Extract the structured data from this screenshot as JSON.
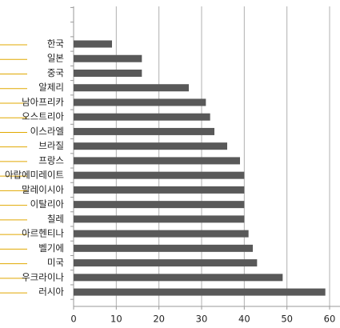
{
  "chart_data": {
    "type": "bar",
    "orientation": "horizontal",
    "categories": [
      "한국",
      "일본",
      "중국",
      "알제리",
      "남아프리카",
      "오스트리아",
      "이스라엘",
      "브라질",
      "프랑스",
      "아랍에미레이트",
      "말레이시아",
      "이탈리아",
      "칠레",
      "아르헨티나",
      "벨기에",
      "미국",
      "우크라이나",
      "러시아"
    ],
    "values": [
      9,
      16,
      16,
      27,
      31,
      32,
      33,
      36,
      39,
      40,
      40,
      40,
      40,
      41,
      42,
      43,
      49,
      59
    ],
    "color": "#595959",
    "xlim": [
      0,
      60
    ],
    "xticks": [
      0,
      10,
      20,
      30,
      40,
      50,
      60
    ],
    "grid": true
  }
}
